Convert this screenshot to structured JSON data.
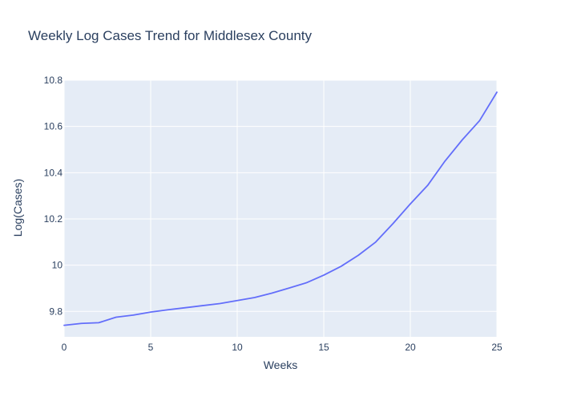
{
  "chart_data": {
    "type": "line",
    "title": "Weekly Log Cases Trend for Middlesex County",
    "xlabel": "Weeks",
    "ylabel": "Log(Cases)",
    "xlim": [
      0,
      25
    ],
    "ylim": [
      9.69,
      10.8
    ],
    "x_ticks": [
      0,
      5,
      10,
      15,
      20,
      25
    ],
    "x_tick_labels": [
      "0",
      "5",
      "10",
      "15",
      "20",
      "25"
    ],
    "y_ticks": [
      9.8,
      10,
      10.2,
      10.4,
      10.6,
      10.8
    ],
    "y_tick_labels": [
      "9.8",
      "10",
      "10.2",
      "10.4",
      "10.6",
      "10.8"
    ],
    "grid": true,
    "legend": "none",
    "series": [
      {
        "color": "#636efa",
        "x": [
          0,
          1,
          2,
          3,
          4,
          5,
          6,
          7,
          8,
          9,
          10,
          11,
          12,
          13,
          14,
          15,
          16,
          17,
          18,
          19,
          20,
          21,
          22,
          23,
          24,
          25
        ],
        "y": [
          9.74,
          9.748,
          9.751,
          9.775,
          9.784,
          9.797,
          9.807,
          9.816,
          9.825,
          9.834,
          9.847,
          9.86,
          9.879,
          9.901,
          9.924,
          9.957,
          9.995,
          10.043,
          10.1,
          10.18,
          10.265,
          10.345,
          10.45,
          10.542,
          10.625,
          10.748
        ]
      }
    ],
    "plot_background": "#e5ecf6",
    "grid_color": "#ffffff",
    "text_color": "#2a3f5f"
  }
}
